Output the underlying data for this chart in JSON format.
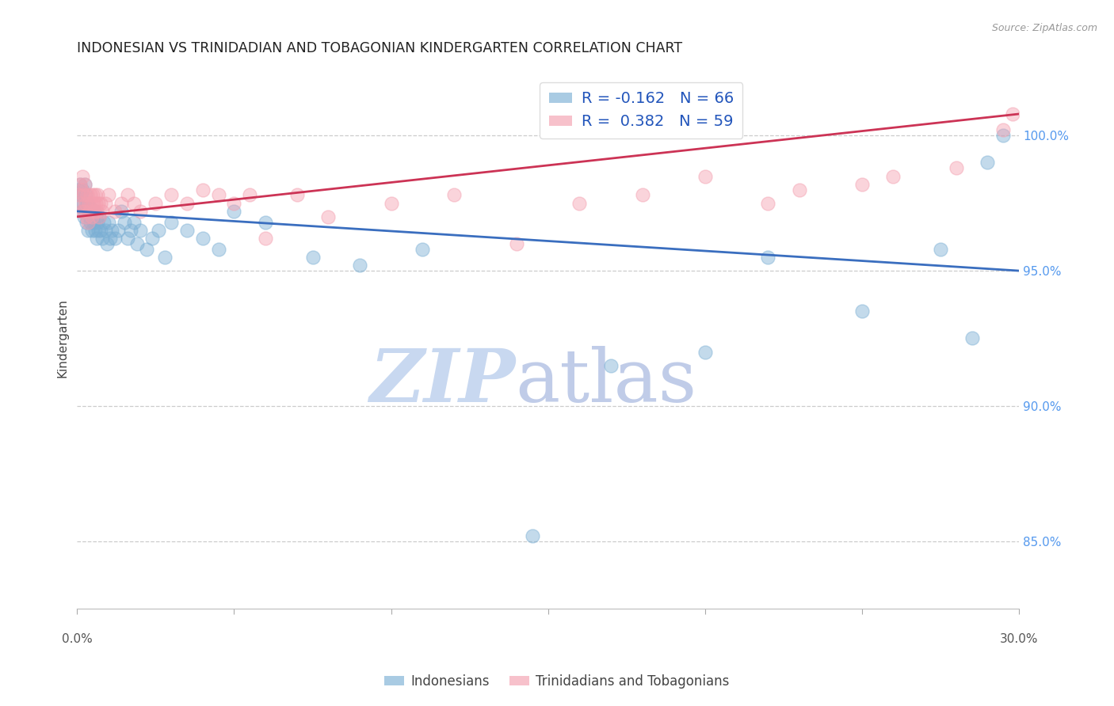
{
  "title": "INDONESIAN VS TRINIDADIAN AND TOBAGONIAN KINDERGARTEN CORRELATION CHART",
  "source": "Source: ZipAtlas.com",
  "ylabel": "Kindergarten",
  "y_ticks": [
    85.0,
    90.0,
    95.0,
    100.0
  ],
  "x_range": [
    0.0,
    30.0
  ],
  "y_range": [
    82.5,
    102.5
  ],
  "blue_R": -0.162,
  "blue_N": 66,
  "pink_R": 0.382,
  "pink_N": 59,
  "blue_color": "#7BAFD4",
  "pink_color": "#F4A0B0",
  "blue_line_color": "#3A6EBF",
  "pink_line_color": "#CC3355",
  "watermark_zip_color": "#C8D8F0",
  "watermark_atlas_color": "#C0CCE8",
  "legend_label_blue": "Indonesians",
  "legend_label_pink": "Trinidadians and Tobagonians",
  "blue_scatter_x": [
    0.05,
    0.08,
    0.1,
    0.12,
    0.15,
    0.17,
    0.2,
    0.22,
    0.25,
    0.27,
    0.3,
    0.33,
    0.35,
    0.38,
    0.4,
    0.42,
    0.45,
    0.48,
    0.5,
    0.52,
    0.55,
    0.58,
    0.6,
    0.63,
    0.65,
    0.68,
    0.7,
    0.75,
    0.8,
    0.85,
    0.9,
    0.95,
    1.0,
    1.05,
    1.1,
    1.2,
    1.3,
    1.4,
    1.5,
    1.6,
    1.7,
    1.8,
    1.9,
    2.0,
    2.2,
    2.4,
    2.6,
    2.8,
    3.0,
    3.5,
    4.0,
    4.5,
    5.0,
    6.0,
    7.5,
    9.0,
    11.0,
    14.5,
    17.0,
    20.0,
    22.0,
    25.0,
    27.5,
    28.5,
    29.0,
    29.5
  ],
  "blue_scatter_y": [
    98.0,
    97.5,
    98.2,
    97.8,
    97.2,
    98.0,
    97.5,
    97.0,
    98.2,
    97.8,
    96.8,
    97.5,
    96.5,
    97.2,
    97.0,
    96.8,
    97.3,
    96.5,
    97.0,
    96.8,
    97.2,
    96.5,
    97.0,
    96.2,
    96.8,
    96.5,
    97.0,
    96.5,
    96.2,
    96.8,
    96.5,
    96.0,
    96.8,
    96.2,
    96.5,
    96.2,
    96.5,
    97.2,
    96.8,
    96.2,
    96.5,
    96.8,
    96.0,
    96.5,
    95.8,
    96.2,
    96.5,
    95.5,
    96.8,
    96.5,
    96.2,
    95.8,
    97.2,
    96.8,
    95.5,
    95.2,
    95.8,
    85.2,
    91.5,
    92.0,
    95.5,
    93.5,
    95.8,
    92.5,
    99.0,
    100.0
  ],
  "pink_scatter_x": [
    0.05,
    0.08,
    0.1,
    0.13,
    0.15,
    0.18,
    0.2,
    0.23,
    0.25,
    0.28,
    0.3,
    0.33,
    0.35,
    0.38,
    0.4,
    0.43,
    0.45,
    0.48,
    0.5,
    0.53,
    0.55,
    0.58,
    0.6,
    0.63,
    0.65,
    0.68,
    0.7,
    0.75,
    0.8,
    0.9,
    1.0,
    1.2,
    1.4,
    1.6,
    1.8,
    2.0,
    2.5,
    3.0,
    3.5,
    4.0,
    4.5,
    5.0,
    5.5,
    6.0,
    7.0,
    8.0,
    10.0,
    12.0,
    14.0,
    16.0,
    18.0,
    20.0,
    22.0,
    23.0,
    25.0,
    26.0,
    28.0,
    29.5,
    29.8
  ],
  "pink_scatter_y": [
    97.8,
    98.2,
    97.5,
    98.0,
    97.2,
    98.5,
    97.8,
    97.2,
    98.2,
    97.5,
    97.0,
    97.8,
    96.8,
    97.5,
    97.2,
    97.8,
    97.5,
    97.0,
    97.8,
    97.5,
    97.2,
    97.8,
    97.5,
    97.2,
    97.8,
    97.5,
    97.0,
    97.5,
    97.2,
    97.5,
    97.8,
    97.2,
    97.5,
    97.8,
    97.5,
    97.2,
    97.5,
    97.8,
    97.5,
    98.0,
    97.8,
    97.5,
    97.8,
    96.2,
    97.8,
    97.0,
    97.5,
    97.8,
    96.0,
    97.5,
    97.8,
    98.5,
    97.5,
    98.0,
    98.2,
    98.5,
    98.8,
    100.2,
    100.8
  ]
}
